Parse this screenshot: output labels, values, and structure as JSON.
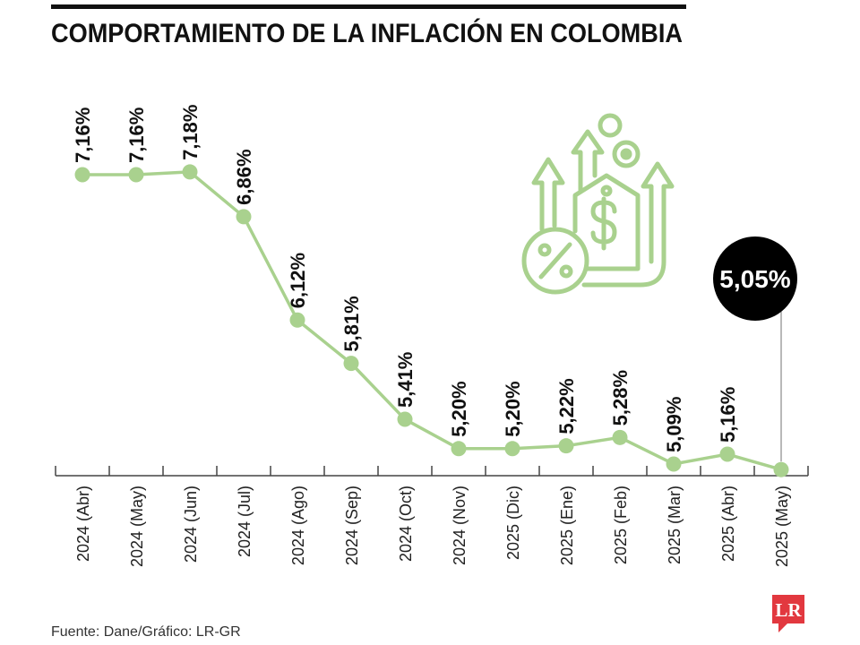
{
  "source": "Fuente: Dane/Gráfico: LR-GR",
  "logo": "LR",
  "icon": "inflation-icon",
  "colors": {
    "accent": "#a9d18e",
    "callout": "#000000",
    "logo": "#e2383f",
    "axis": "#444444"
  },
  "chart_data": {
    "type": "line",
    "title": "COMPORTAMIENTO DE LA INFLACIÓN EN COLOMBIA",
    "categories": [
      "2024 (Abr)",
      "2024 (May)",
      "2024 (Jun)",
      "2024 (Jul)",
      "2024 (Ago)",
      "2024 (Sep)",
      "2024 (Oct)",
      "2024 (Nov)",
      "2025 (Dic)",
      "2025 (Ene)",
      "2025 (Feb)",
      "2025 (Mar)",
      "2025 (Abr)",
      "2025 (May)"
    ],
    "values": [
      7.16,
      7.16,
      7.18,
      6.86,
      6.12,
      5.81,
      5.41,
      5.2,
      5.2,
      5.22,
      5.28,
      5.09,
      5.16,
      5.05
    ],
    "data_labels": [
      "7,16%",
      "7,16%",
      "7,18%",
      "6,86%",
      "6,12%",
      "5,81%",
      "5,41%",
      "5,20%",
      "5,20%",
      "5,22%",
      "5,28%",
      "5,09%",
      "5,16%",
      "5,05%"
    ],
    "highlight_index": 13,
    "ylim": [
      5.0,
      7.5
    ],
    "grid": false
  }
}
